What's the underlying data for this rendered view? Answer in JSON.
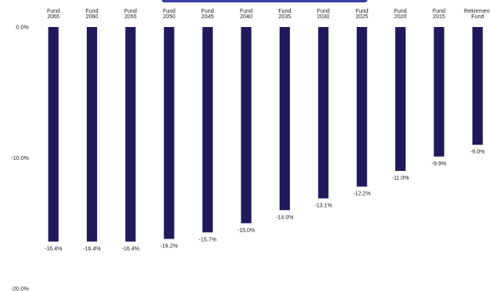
{
  "chart_data": {
    "type": "bar",
    "categories": [
      [
        "Fund",
        "2065"
      ],
      [
        "Fund",
        "2060"
      ],
      [
        "Fund",
        "2055"
      ],
      [
        "Fund",
        "2050"
      ],
      [
        "Fund",
        "2045"
      ],
      [
        "Fund",
        "2040"
      ],
      [
        "Fund",
        "2035"
      ],
      [
        "Fund",
        "2030"
      ],
      [
        "Fund",
        "2025"
      ],
      [
        "Fund",
        "2020"
      ],
      [
        "Fund",
        "2015"
      ],
      [
        "Retirement",
        "Fund"
      ]
    ],
    "values": [
      -16.4,
      -16.4,
      -16.4,
      -16.2,
      -15.7,
      -15.0,
      -14.0,
      -13.1,
      -12.2,
      -11.0,
      -9.9,
      -9.0
    ],
    "data_labels": [
      "-16.4%",
      "-16.4%",
      "-16.4%",
      "-16.2%",
      "-15.7%",
      "-15.0%",
      "-14.0%",
      "-13.1%",
      "-12.2%",
      "-11.0%",
      "-9.9%",
      "-9.0%"
    ],
    "ytick_values": [
      0,
      -10,
      -20
    ],
    "ytick_labels": [
      "0.0%",
      "-10.0%",
      "-20.0%"
    ],
    "ylim": [
      -20,
      0
    ],
    "grid": false,
    "bar_color": "#201a5c",
    "title_color": "#3b3ea8"
  }
}
